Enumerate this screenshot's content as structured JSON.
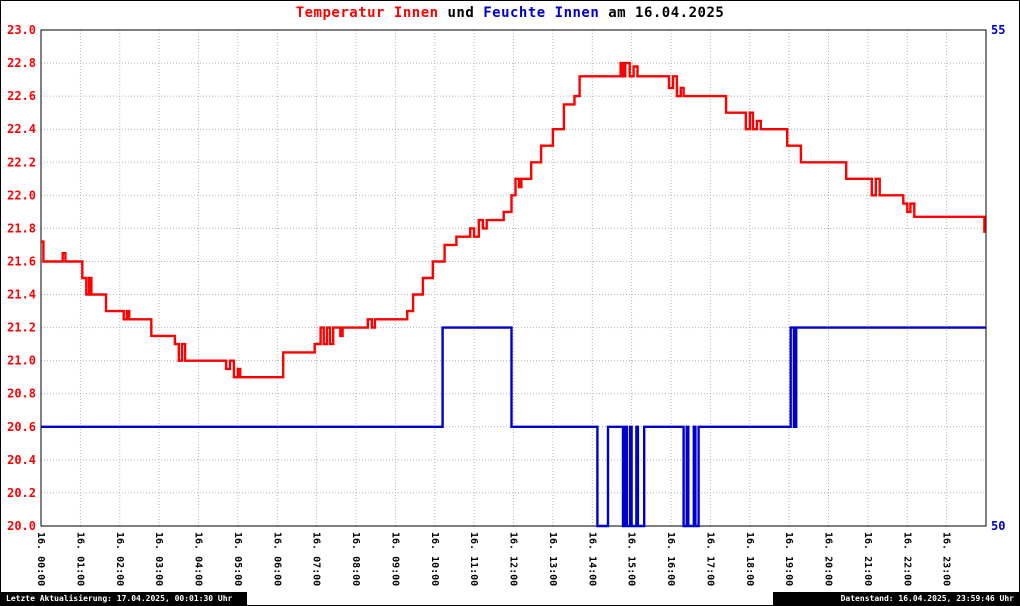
{
  "title": {
    "part1": "Temperatur Innen",
    "part2": "und",
    "part3": "Feuchte Innen",
    "part4": "am 16.04.2025"
  },
  "footer": {
    "left": "Letzte Aktualisierung: 17.04.2025, 00:01:30 Uhr",
    "right": "Datenstand: 16.04.2025, 23:59:46 Uhr"
  },
  "chart_data": {
    "type": "line",
    "title": "Temperatur Innen und Feuchte Innen am 16.04.2025",
    "grid": true,
    "colors": {
      "temperature": "#ff0000",
      "humidity": "#0000cc",
      "grid": "#b4b4b4",
      "axis_text": "#000000"
    },
    "x_axis": {
      "min": 0,
      "max": 24,
      "tick_labels": [
        "16. 00:00",
        "16. 01:00",
        "16. 02:00",
        "16. 03:00",
        "16. 04:00",
        "16. 05:00",
        "16. 06:00",
        "16. 07:00",
        "16. 08:00",
        "16. 09:00",
        "16. 10:00",
        "16. 11:00",
        "16. 12:00",
        "16. 13:00",
        "16. 14:00",
        "16. 15:00",
        "16. 16:00",
        "16. 17:00",
        "16. 18:00",
        "16. 19:00",
        "16. 20:00",
        "16. 21:00",
        "16. 22:00",
        "16. 23:00"
      ]
    },
    "left_axis": {
      "min": 20.0,
      "max": 23.0,
      "step": 0.2,
      "tick_labels": [
        "23.0",
        "22.8",
        "22.6",
        "22.4",
        "22.2",
        "22.0",
        "21.8",
        "21.6",
        "21.4",
        "21.2",
        "21.0",
        "20.8",
        "20.6",
        "20.4",
        "20.2",
        "20.0"
      ]
    },
    "right_axis": {
      "min": 50,
      "max": 55,
      "ticks": [
        {
          "label": "55",
          "value": 55
        },
        {
          "label": "50",
          "value": 50
        }
      ]
    },
    "series": [
      {
        "name": "Temperatur Innen",
        "data_name": "temperature-series",
        "axis": "left",
        "color": "#ff0000",
        "points": [
          [
            0.0,
            21.72
          ],
          [
            0.06,
            21.72
          ],
          [
            0.06,
            21.6
          ],
          [
            0.55,
            21.6
          ],
          [
            0.55,
            21.65
          ],
          [
            0.62,
            21.65
          ],
          [
            0.62,
            21.6
          ],
          [
            1.05,
            21.6
          ],
          [
            1.05,
            21.5
          ],
          [
            1.15,
            21.5
          ],
          [
            1.15,
            21.4
          ],
          [
            1.22,
            21.4
          ],
          [
            1.22,
            21.5
          ],
          [
            1.28,
            21.5
          ],
          [
            1.28,
            21.4
          ],
          [
            1.65,
            21.4
          ],
          [
            1.65,
            21.3
          ],
          [
            2.1,
            21.3
          ],
          [
            2.1,
            21.25
          ],
          [
            2.18,
            21.25
          ],
          [
            2.18,
            21.3
          ],
          [
            2.24,
            21.3
          ],
          [
            2.24,
            21.25
          ],
          [
            2.8,
            21.25
          ],
          [
            2.8,
            21.15
          ],
          [
            3.4,
            21.15
          ],
          [
            3.4,
            21.1
          ],
          [
            3.5,
            21.1
          ],
          [
            3.5,
            21.0
          ],
          [
            3.58,
            21.0
          ],
          [
            3.58,
            21.1
          ],
          [
            3.66,
            21.1
          ],
          [
            3.66,
            21.0
          ],
          [
            4.7,
            21.0
          ],
          [
            4.7,
            20.95
          ],
          [
            4.8,
            20.95
          ],
          [
            4.8,
            21.0
          ],
          [
            4.9,
            21.0
          ],
          [
            4.9,
            20.9
          ],
          [
            5.0,
            20.9
          ],
          [
            5.0,
            20.95
          ],
          [
            5.06,
            20.95
          ],
          [
            5.06,
            20.9
          ],
          [
            6.15,
            20.9
          ],
          [
            6.15,
            21.05
          ],
          [
            6.95,
            21.05
          ],
          [
            6.95,
            21.1
          ],
          [
            7.1,
            21.1
          ],
          [
            7.1,
            21.2
          ],
          [
            7.18,
            21.2
          ],
          [
            7.18,
            21.1
          ],
          [
            7.26,
            21.1
          ],
          [
            7.26,
            21.2
          ],
          [
            7.34,
            21.2
          ],
          [
            7.34,
            21.1
          ],
          [
            7.42,
            21.1
          ],
          [
            7.42,
            21.2
          ],
          [
            7.6,
            21.2
          ],
          [
            7.6,
            21.15
          ],
          [
            7.66,
            21.15
          ],
          [
            7.66,
            21.2
          ],
          [
            8.3,
            21.2
          ],
          [
            8.3,
            21.25
          ],
          [
            8.4,
            21.25
          ],
          [
            8.4,
            21.2
          ],
          [
            8.48,
            21.2
          ],
          [
            8.48,
            21.25
          ],
          [
            9.3,
            21.25
          ],
          [
            9.3,
            21.3
          ],
          [
            9.45,
            21.3
          ],
          [
            9.45,
            21.4
          ],
          [
            9.7,
            21.4
          ],
          [
            9.7,
            21.5
          ],
          [
            9.95,
            21.5
          ],
          [
            9.95,
            21.6
          ],
          [
            10.25,
            21.6
          ],
          [
            10.25,
            21.7
          ],
          [
            10.55,
            21.7
          ],
          [
            10.55,
            21.75
          ],
          [
            10.9,
            21.75
          ],
          [
            10.9,
            21.8
          ],
          [
            11.0,
            21.8
          ],
          [
            11.0,
            21.75
          ],
          [
            11.12,
            21.75
          ],
          [
            11.12,
            21.85
          ],
          [
            11.22,
            21.85
          ],
          [
            11.22,
            21.8
          ],
          [
            11.32,
            21.8
          ],
          [
            11.32,
            21.85
          ],
          [
            11.75,
            21.85
          ],
          [
            11.75,
            21.9
          ],
          [
            11.95,
            21.9
          ],
          [
            11.95,
            22.0
          ],
          [
            12.05,
            22.0
          ],
          [
            12.05,
            22.1
          ],
          [
            12.14,
            22.1
          ],
          [
            12.14,
            22.05
          ],
          [
            12.2,
            22.05
          ],
          [
            12.2,
            22.1
          ],
          [
            12.45,
            22.1
          ],
          [
            12.45,
            22.2
          ],
          [
            12.7,
            22.2
          ],
          [
            12.7,
            22.3
          ],
          [
            13.0,
            22.3
          ],
          [
            13.0,
            22.4
          ],
          [
            13.28,
            22.4
          ],
          [
            13.28,
            22.55
          ],
          [
            13.55,
            22.55
          ],
          [
            13.55,
            22.6
          ],
          [
            13.68,
            22.6
          ],
          [
            13.68,
            22.72
          ],
          [
            14.72,
            22.72
          ],
          [
            14.72,
            22.8
          ],
          [
            14.78,
            22.8
          ],
          [
            14.78,
            22.72
          ],
          [
            14.84,
            22.72
          ],
          [
            14.84,
            22.8
          ],
          [
            14.95,
            22.8
          ],
          [
            14.95,
            22.72
          ],
          [
            15.05,
            22.72
          ],
          [
            15.05,
            22.78
          ],
          [
            15.15,
            22.78
          ],
          [
            15.15,
            22.72
          ],
          [
            15.95,
            22.72
          ],
          [
            15.95,
            22.65
          ],
          [
            16.05,
            22.65
          ],
          [
            16.05,
            22.72
          ],
          [
            16.15,
            22.72
          ],
          [
            16.15,
            22.6
          ],
          [
            16.25,
            22.6
          ],
          [
            16.25,
            22.65
          ],
          [
            16.32,
            22.65
          ],
          [
            16.32,
            22.6
          ],
          [
            17.4,
            22.6
          ],
          [
            17.4,
            22.5
          ],
          [
            17.9,
            22.5
          ],
          [
            17.9,
            22.4
          ],
          [
            18.0,
            22.4
          ],
          [
            18.0,
            22.5
          ],
          [
            18.08,
            22.5
          ],
          [
            18.08,
            22.4
          ],
          [
            18.18,
            22.4
          ],
          [
            18.18,
            22.45
          ],
          [
            18.28,
            22.45
          ],
          [
            18.28,
            22.4
          ],
          [
            18.95,
            22.4
          ],
          [
            18.95,
            22.3
          ],
          [
            19.3,
            22.3
          ],
          [
            19.3,
            22.2
          ],
          [
            20.45,
            22.2
          ],
          [
            20.45,
            22.1
          ],
          [
            21.1,
            22.1
          ],
          [
            21.1,
            22.0
          ],
          [
            21.2,
            22.0
          ],
          [
            21.2,
            22.1
          ],
          [
            21.3,
            22.1
          ],
          [
            21.3,
            22.0
          ],
          [
            21.9,
            22.0
          ],
          [
            21.9,
            21.95
          ],
          [
            22.0,
            21.95
          ],
          [
            22.0,
            21.9
          ],
          [
            22.08,
            21.9
          ],
          [
            22.08,
            21.95
          ],
          [
            22.18,
            21.95
          ],
          [
            22.18,
            21.87
          ],
          [
            23.96,
            21.87
          ],
          [
            23.96,
            21.78
          ],
          [
            24.0,
            21.78
          ]
        ]
      },
      {
        "name": "Feuchte Innen",
        "data_name": "humidity-series",
        "axis": "right",
        "color": "#0000cc",
        "points": [
          [
            0.0,
            51
          ],
          [
            10.2,
            51
          ],
          [
            10.2,
            52
          ],
          [
            11.95,
            52
          ],
          [
            11.95,
            51
          ],
          [
            14.13,
            51
          ],
          [
            14.13,
            50
          ],
          [
            14.4,
            50
          ],
          [
            14.4,
            51
          ],
          [
            14.78,
            51
          ],
          [
            14.78,
            50
          ],
          [
            14.84,
            50
          ],
          [
            14.84,
            51
          ],
          [
            14.88,
            51
          ],
          [
            14.88,
            50
          ],
          [
            14.96,
            50
          ],
          [
            14.96,
            51
          ],
          [
            15.0,
            51
          ],
          [
            15.0,
            50
          ],
          [
            15.12,
            50
          ],
          [
            15.12,
            51
          ],
          [
            15.16,
            51
          ],
          [
            15.16,
            50
          ],
          [
            15.32,
            50
          ],
          [
            15.32,
            51
          ],
          [
            16.32,
            51
          ],
          [
            16.32,
            50
          ],
          [
            16.4,
            50
          ],
          [
            16.4,
            51
          ],
          [
            16.44,
            51
          ],
          [
            16.44,
            50
          ],
          [
            16.58,
            50
          ],
          [
            16.58,
            51
          ],
          [
            16.62,
            51
          ],
          [
            16.62,
            50
          ],
          [
            16.7,
            50
          ],
          [
            16.7,
            51
          ],
          [
            19.04,
            51
          ],
          [
            19.04,
            52
          ],
          [
            19.12,
            52
          ],
          [
            19.12,
            51
          ],
          [
            19.18,
            51
          ],
          [
            19.18,
            52
          ],
          [
            24.0,
            52
          ]
        ]
      }
    ]
  }
}
